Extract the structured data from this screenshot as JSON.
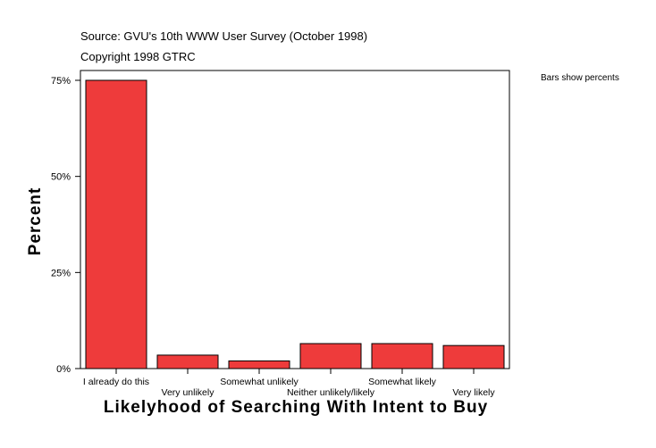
{
  "header": {
    "source": "Source: GVU's 10th WWW User Survey (October 1998)",
    "copyright": "Copyright 1998 GTRC"
  },
  "note": "Bars show percents",
  "colors": {
    "bar": "#ee3b3b",
    "bar_stroke": "#000000",
    "axis": "#000000"
  },
  "chart_data": {
    "type": "bar",
    "title": "",
    "xlabel": "Likelyhood of Searching With Intent to Buy",
    "ylabel": "Percent",
    "categories": [
      "I already do this",
      "Very unlikely",
      "Somewhat unlikely",
      "Neither unlikely/likely",
      "Somewhat likely",
      "Very likely"
    ],
    "values": [
      75.0,
      3.5,
      2.0,
      6.5,
      6.5,
      6.0
    ],
    "ylim": [
      0,
      75
    ],
    "yticks": [
      0,
      25,
      50,
      75
    ],
    "ytick_labels": [
      "0%",
      "25%",
      "50%",
      "75%"
    ],
    "grid": false,
    "legend": "none"
  }
}
